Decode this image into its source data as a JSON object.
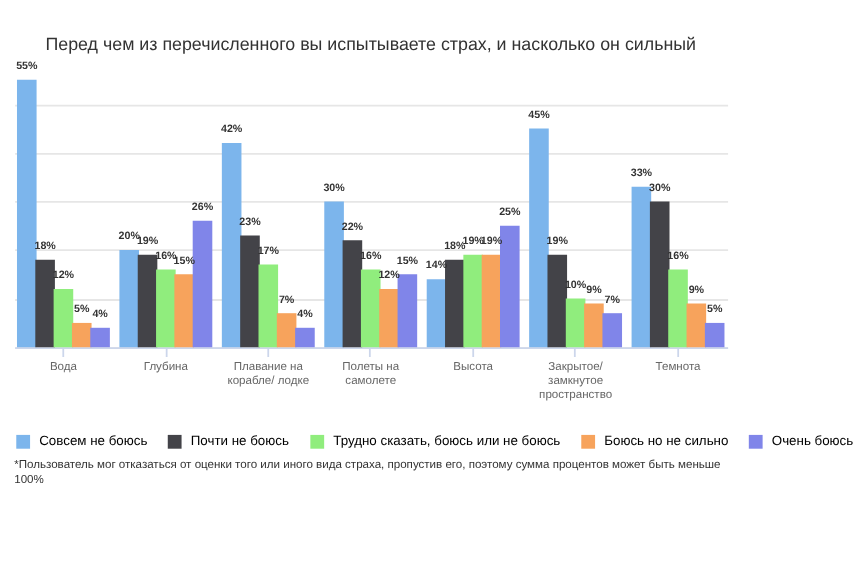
{
  "chart_data": {
    "type": "bar",
    "title": "Перед чем из перечисленного вы испытываете страх, и насколько он сильный",
    "categories": [
      "Вода",
      "Глубина",
      "Плавание на корабле/ лодке",
      "Полеты на самолете",
      "Высота",
      "Закрытое/ замкнутое пространство",
      "Темнота"
    ],
    "series": [
      {
        "name": "Совсем не боюсь",
        "color": "#7cb5ec",
        "values": [
          55,
          20,
          42,
          30,
          14,
          45,
          33
        ],
        "value_labels": [
          "55%",
          "20%",
          "42%",
          "30%",
          "14%",
          "45%",
          "33%"
        ]
      },
      {
        "name": "Почти не боюсь",
        "color": "#434348",
        "values": [
          18,
          19,
          23,
          22,
          18,
          19,
          30
        ],
        "value_labels": [
          "18%",
          "19%",
          "23%",
          "22%",
          "18%",
          "19%",
          "30%"
        ]
      },
      {
        "name": "Трудно сказать, боюсь или не боюсь",
        "color": "#90ed7d",
        "values": [
          12,
          16,
          17,
          16,
          19,
          10,
          16
        ],
        "value_labels": [
          "12%",
          "16%",
          "17%",
          "16%",
          "19%",
          "10%",
          "16%"
        ]
      },
      {
        "name": "Боюсь но не сильно",
        "color": "#f7a35c",
        "values": [
          5,
          15,
          7,
          12,
          19,
          9,
          9
        ],
        "value_labels": [
          "5%",
          "15%",
          "7%",
          "12%",
          "19%",
          "9%",
          "9%"
        ]
      },
      {
        "name": "Очень боюсь",
        "color": "#8085e9",
        "values": [
          4,
          26,
          4,
          15,
          25,
          7,
          5
        ],
        "value_labels": [
          "4%",
          "26%",
          "4%",
          "15%",
          "25%",
          "7%",
          "5%"
        ]
      }
    ],
    "grid": "y",
    "tick_labels": "x",
    "legend": "bottom",
    "annotations": [
      "*Пользователь мог отказаться от оценки того или иного вида страха, пропустив его, поэтому сумма процентов может быть меньше 100%"
    ]
  }
}
